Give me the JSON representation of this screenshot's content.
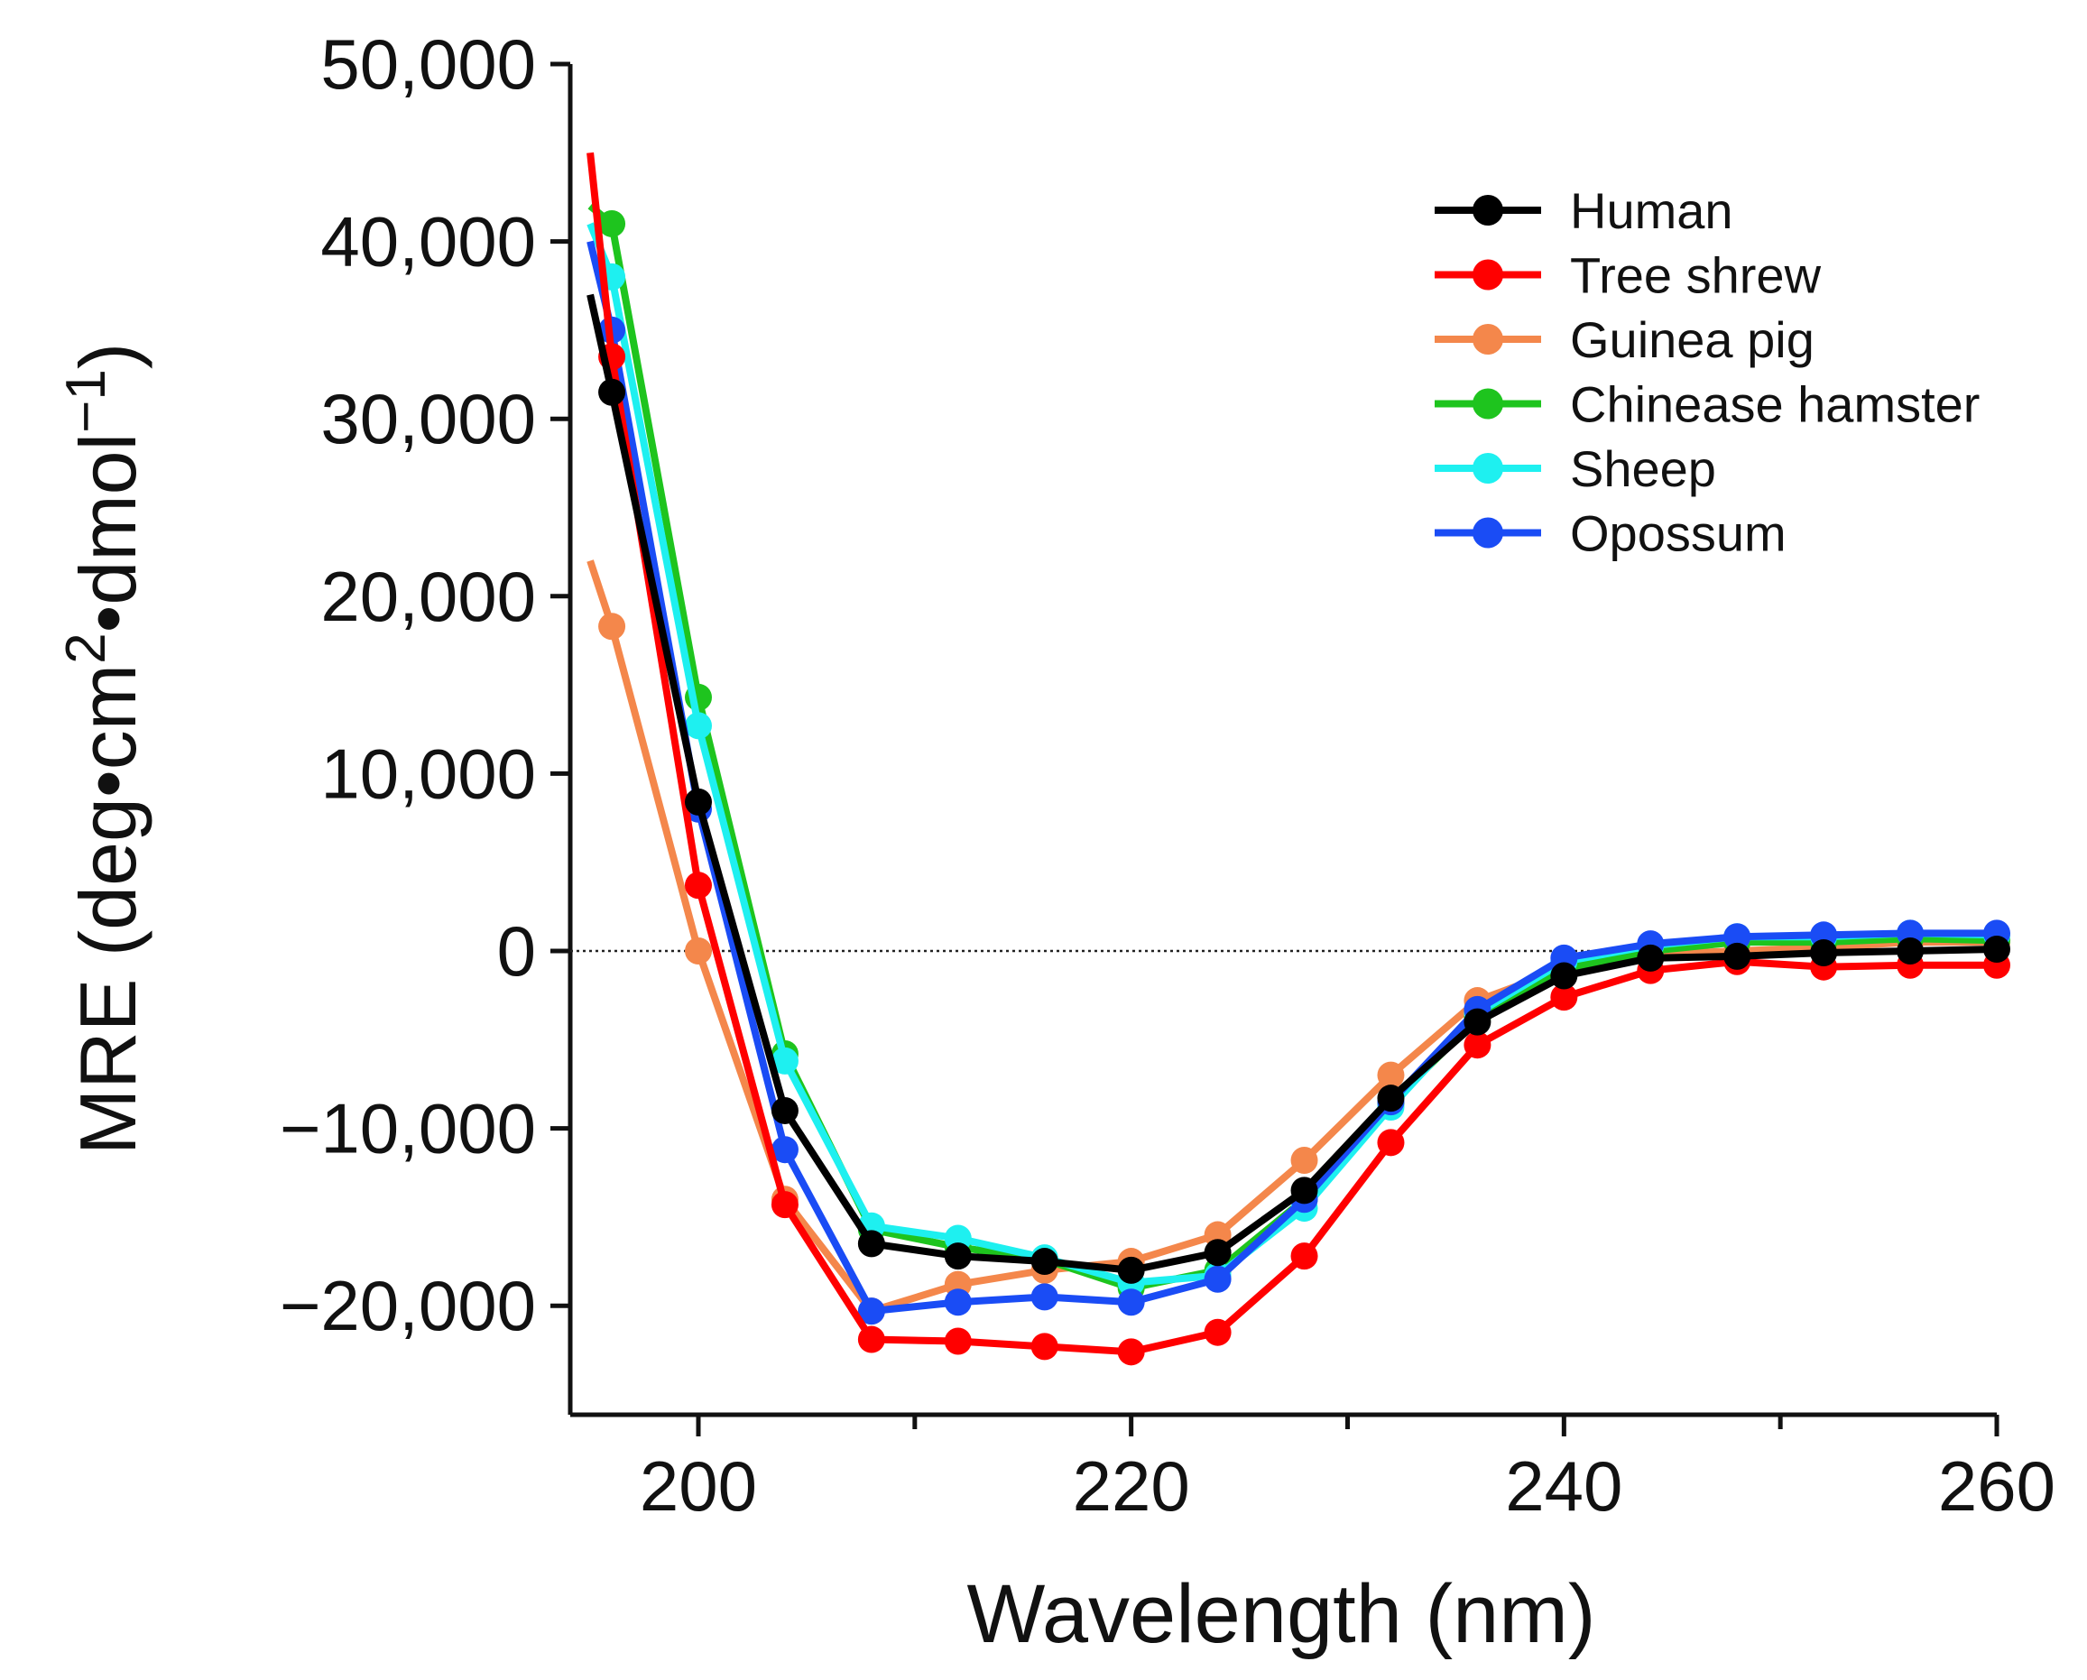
{
  "chart_data": {
    "type": "line",
    "title": "",
    "xlabel": "Wavelength (nm)",
    "ylabel": "MRE (deg•cm²•dmol⁻¹)",
    "ylabel_parts": {
      "main": "MRE (deg•cm",
      "sup1": "2",
      "mid": "•dmol",
      "sup2": "−1",
      "end": ")"
    },
    "xlim": [
      194,
      260
    ],
    "ylim": [
      -26000,
      50000
    ],
    "x_ticks": [
      200,
      220,
      240,
      260
    ],
    "x_minor_ticks": [
      210,
      230,
      250
    ],
    "y_ticks": [
      -20000,
      -10000,
      0,
      10000,
      20000,
      30000,
      40000,
      50000
    ],
    "y_tick_labels": [
      "−20,000",
      "−10,000",
      "0",
      "10,000",
      "20,000",
      "30,000",
      "40,000",
      "50,000"
    ],
    "zero_line": "dotted",
    "grid": false,
    "legend_position": "top-right",
    "x": [
      195,
      196,
      200,
      204,
      208,
      212,
      216,
      220,
      224,
      228,
      232,
      236,
      240,
      244,
      248,
      252,
      256,
      260
    ],
    "marker_x": [
      196,
      200,
      204,
      208,
      212,
      216,
      220,
      224,
      228,
      232,
      236,
      240,
      244,
      248,
      252,
      256,
      260
    ],
    "series": [
      {
        "name": "Guinea pig",
        "color": "#f4874b",
        "values": [
          22000,
          18300,
          0,
          -14000,
          -20300,
          -18800,
          -18000,
          -17500,
          -16000,
          -11800,
          -7000,
          -2800,
          -1000,
          -200,
          0,
          200,
          500,
          500
        ]
      },
      {
        "name": "Chinease hamster",
        "color": "#1ec41e",
        "values": [
          42000,
          41000,
          14300,
          -5800,
          -15700,
          -16700,
          -17400,
          -19000,
          -18000,
          -14000,
          -8600,
          -3800,
          -1000,
          0,
          500,
          500,
          700,
          600
        ]
      },
      {
        "name": "Sheep",
        "color": "#1ef0f0",
        "values": [
          41000,
          38000,
          12700,
          -6200,
          -15500,
          -16200,
          -17300,
          -18700,
          -18300,
          -14500,
          -8800,
          -3500,
          -600,
          300,
          800,
          800,
          1000,
          900
        ]
      },
      {
        "name": "Opossum",
        "color": "#1a4cf5",
        "values": [
          40000,
          35000,
          8000,
          -11200,
          -20300,
          -19800,
          -19500,
          -19800,
          -18500,
          -14000,
          -8500,
          -3300,
          -400,
          400,
          800,
          900,
          1000,
          1000
        ]
      },
      {
        "name": "Tree shrew",
        "color": "#ff0000",
        "values": [
          45000,
          33500,
          3700,
          -14300,
          -21900,
          -22000,
          -22300,
          -22600,
          -21500,
          -17200,
          -10800,
          -5300,
          -2600,
          -1100,
          -600,
          -900,
          -800,
          -800
        ]
      },
      {
        "name": "Human",
        "color": "#000000",
        "values": [
          37000,
          31500,
          8400,
          -9000,
          -16500,
          -17200,
          -17500,
          -18000,
          -17000,
          -13500,
          -8300,
          -4000,
          -1400,
          -400,
          -300,
          -100,
          0,
          100
        ]
      }
    ],
    "legend_order": [
      "Human",
      "Tree shrew",
      "Guinea pig",
      "Chinease hamster",
      "Sheep",
      "Opossum"
    ]
  }
}
